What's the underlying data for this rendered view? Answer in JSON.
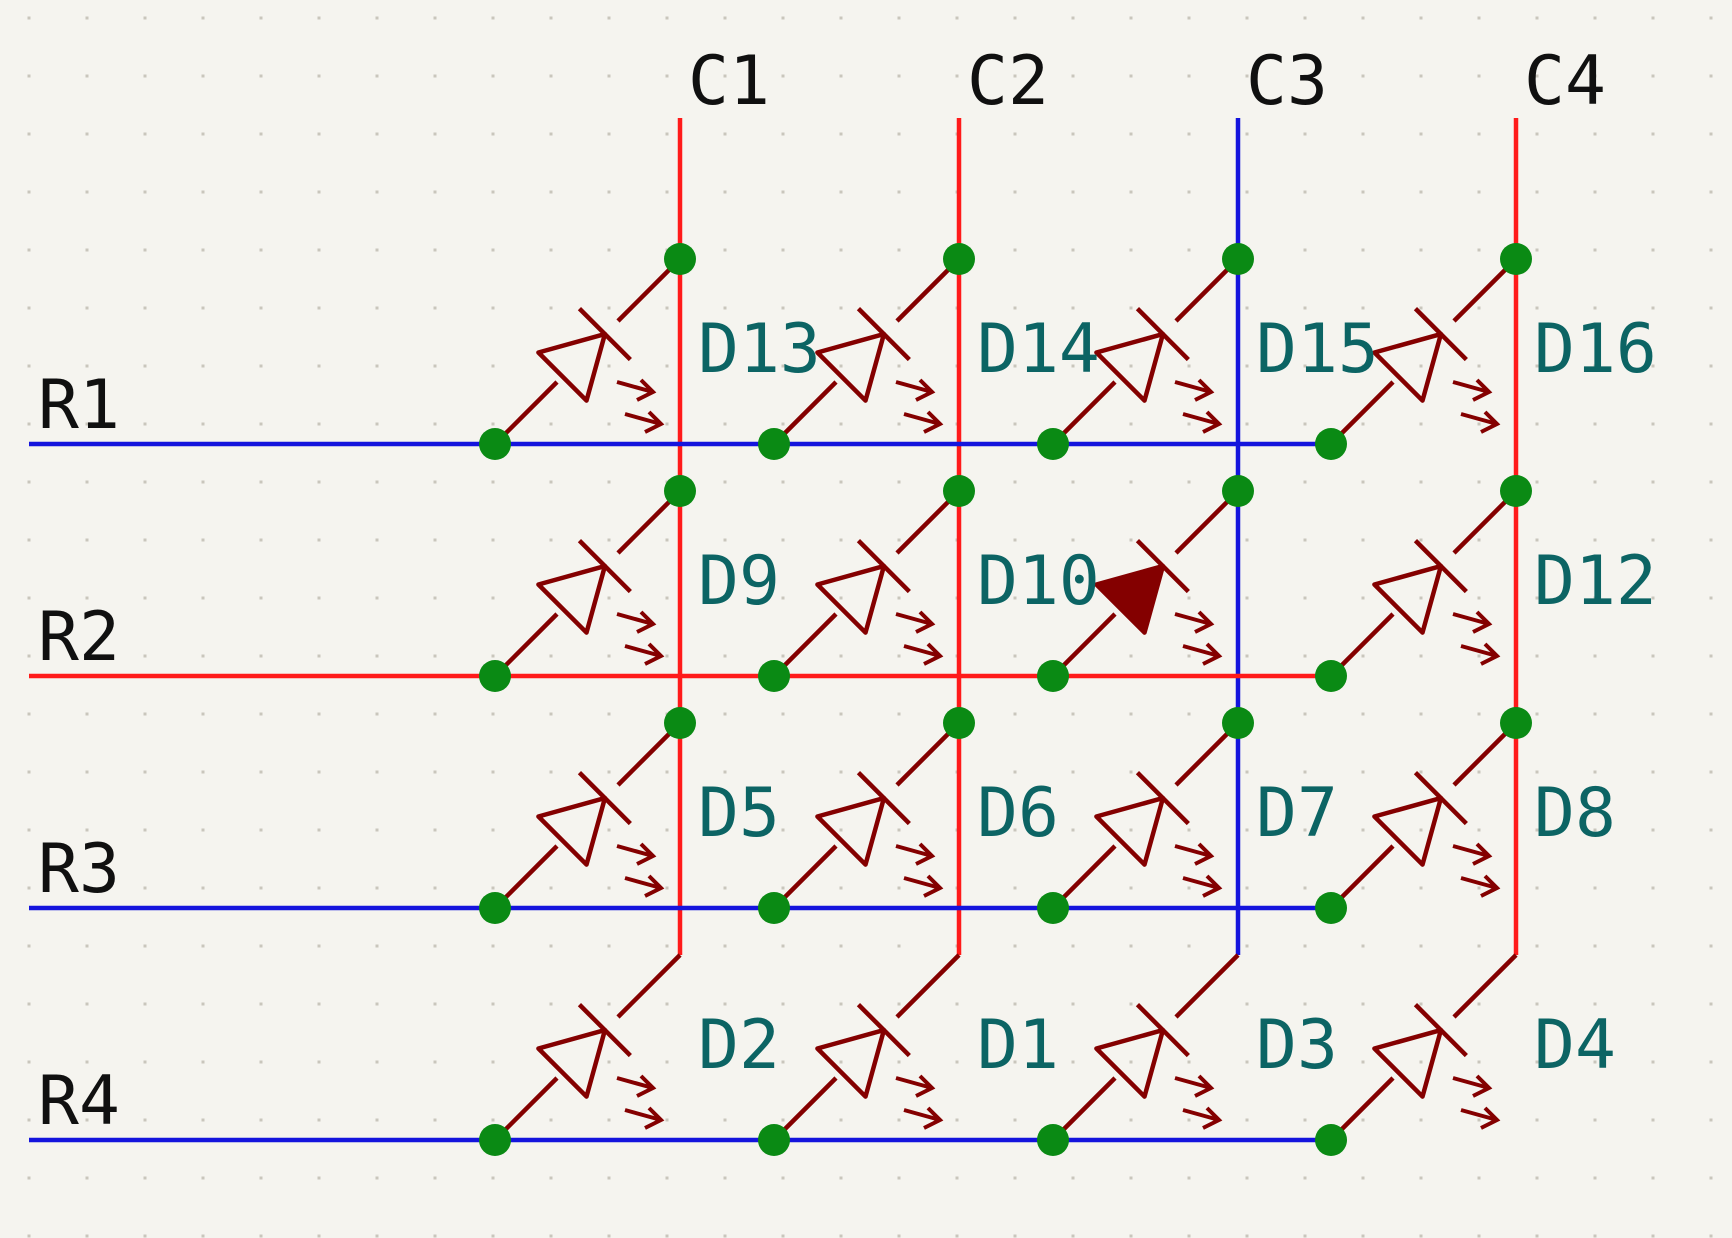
{
  "colors": {
    "background": "#f5f4ef",
    "grid_dot": "#c9c6bc",
    "wire_active": "#ff1a1a",
    "wire_inactive": "#1414dd",
    "junction": "#0a8a14",
    "led": "#840000",
    "ref_text": "#0c6464",
    "net_text": "#101010"
  },
  "columns": [
    {
      "label": "C1",
      "active": true
    },
    {
      "label": "C2",
      "active": true
    },
    {
      "label": "C3",
      "active": false
    },
    {
      "label": "C4",
      "active": true
    }
  ],
  "rows": [
    {
      "label": "R1",
      "active": false
    },
    {
      "label": "R2",
      "active": true
    },
    {
      "label": "R3",
      "active": false
    },
    {
      "label": "R4",
      "active": false
    }
  ],
  "leds": [
    [
      {
        "ref": "D13",
        "lit": false
      },
      {
        "ref": "D14",
        "lit": false
      },
      {
        "ref": "D15",
        "lit": false
      },
      {
        "ref": "D16",
        "lit": false
      }
    ],
    [
      {
        "ref": "D9",
        "lit": false
      },
      {
        "ref": "D10",
        "lit": false
      },
      {
        "ref": "",
        "lit": true
      },
      {
        "ref": "D12",
        "lit": false
      }
    ],
    [
      {
        "ref": "D5",
        "lit": false
      },
      {
        "ref": "D6",
        "lit": false
      },
      {
        "ref": "D7",
        "lit": false
      },
      {
        "ref": "D8",
        "lit": false
      }
    ],
    [
      {
        "ref": "D2",
        "lit": false
      },
      {
        "ref": "D1",
        "lit": false
      },
      {
        "ref": "D3",
        "lit": false
      },
      {
        "ref": "D4",
        "lit": false
      }
    ]
  ]
}
